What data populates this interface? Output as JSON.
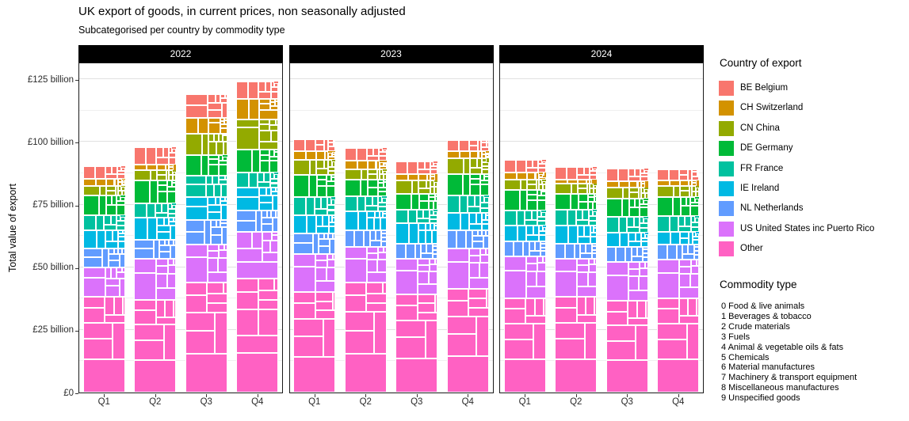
{
  "title": "UK export of goods, in current prices, non seasonally adjusted",
  "subtitle": "Subcategorised per country by commodity type",
  "chart_data": {
    "type": "bar",
    "variant": "stacked-mosaic",
    "title": "UK export of goods, in current prices, non seasonally adjusted",
    "subtitle": "Subcategorised per country by commodity type",
    "ylabel": "Total value of export",
    "xlabel": "",
    "unit": "£ billion",
    "ylim": [
      0,
      132
    ],
    "grid": "major-and-minor",
    "legend_position": "right",
    "facets": [
      "2022",
      "2023",
      "2024"
    ],
    "x_categories": [
      "Q1",
      "Q2",
      "Q3",
      "Q4"
    ],
    "y_ticks": [
      {
        "value": 0,
        "label": "£0"
      },
      {
        "value": 25,
        "label": "£25 billion"
      },
      {
        "value": 50,
        "label": "£50 billion"
      },
      {
        "value": 75,
        "label": "£75 billion"
      },
      {
        "value": 100,
        "label": "£100 billion"
      },
      {
        "value": 125,
        "label": "£125 billion"
      }
    ],
    "legend_title": "Country of export",
    "countries": [
      {
        "code": "BE",
        "label": "BE Belgium",
        "color": "#F8766D"
      },
      {
        "code": "CH",
        "label": "CH Switzerland",
        "color": "#D39200"
      },
      {
        "code": "CN",
        "label": "CN China",
        "color": "#93AA00"
      },
      {
        "code": "DE",
        "label": "DE Germany",
        "color": "#00BA38"
      },
      {
        "code": "FR",
        "label": "FR France",
        "color": "#00C19F"
      },
      {
        "code": "IE",
        "label": "IE Ireland",
        "color": "#00B9E3"
      },
      {
        "code": "NL",
        "label": "NL Netherlands",
        "color": "#619CFF"
      },
      {
        "code": "US",
        "label": "US United States inc Puerto Rico",
        "color": "#DB72FB"
      },
      {
        "code": "Other",
        "label": "Other",
        "color": "#FF61C3"
      }
    ],
    "commodity_title": "Commodity type",
    "commodities": [
      "0 Food & live animals",
      "1 Beverages & tobacco",
      "2 Crude materials",
      "3 Fuels",
      "4 Animal & vegetable oils & fats",
      "5 Chemicals",
      "6 Material manufactures",
      "7 Machinery & transport equipment",
      "8 Miscellaneous manufactures",
      "9 Unspecified goods"
    ],
    "commodity_shares_pct": {
      "BE": [
        7,
        2,
        3,
        8,
        1,
        28,
        11,
        25,
        10,
        5
      ],
      "CH": [
        4,
        2,
        2,
        2,
        1,
        30,
        8,
        20,
        25,
        6
      ],
      "CN": [
        5,
        4,
        6,
        3,
        1,
        15,
        10,
        40,
        12,
        4
      ],
      "DE": [
        6,
        2,
        3,
        5,
        1,
        18,
        12,
        38,
        11,
        4
      ],
      "FR": [
        9,
        6,
        3,
        6,
        1,
        20,
        11,
        30,
        10,
        4
      ],
      "IE": [
        10,
        3,
        2,
        6,
        1,
        32,
        9,
        22,
        11,
        4
      ],
      "NL": [
        9,
        3,
        4,
        14,
        2,
        22,
        10,
        24,
        9,
        3
      ],
      "US": [
        4,
        5,
        2,
        8,
        1,
        18,
        9,
        35,
        13,
        5
      ],
      "Other": [
        6,
        4,
        4,
        8,
        1,
        15,
        12,
        35,
        11,
        4
      ]
    },
    "values_billion_by_country": {
      "2022": {
        "Q1": [
          5.0,
          2.8,
          3.8,
          7.8,
          6.0,
          7.2,
          7.8,
          11.6,
          38.2
        ],
        "Q2": [
          7.0,
          2.3,
          4.0,
          9.2,
          5.8,
          8.6,
          7.7,
          16.4,
          37.0
        ],
        "Q3": [
          9.7,
          6.1,
          8.6,
          8.2,
          8.6,
          9.3,
          9.5,
          15.3,
          43.9
        ],
        "Q4": [
          6.9,
          8.2,
          12.3,
          9.0,
          6.1,
          9.2,
          8.5,
          18.5,
          45.5
        ]
      },
      "2023": {
        "Q1": [
          4.7,
          3.5,
          6.0,
          8.9,
          7.3,
          7.0,
          8.2,
          15.2,
          40.2
        ],
        "Q2": [
          5.1,
          3.5,
          3.9,
          6.9,
          5.8,
          7.7,
          6.5,
          14.2,
          44.0
        ],
        "Q3": [
          5.0,
          2.6,
          5.1,
          6.5,
          5.3,
          8.2,
          6.0,
          14.2,
          39.2
        ],
        "Q4": [
          4.7,
          2.8,
          6.3,
          8.5,
          7.0,
          7.0,
          7.0,
          16.1,
          41.5
        ]
      },
      "2024": {
        "Q1": [
          5.1,
          3.0,
          3.9,
          8.4,
          5.8,
          6.3,
          6.0,
          16.7,
          37.7
        ],
        "Q2": [
          5.1,
          1.6,
          4.0,
          6.5,
          6.3,
          7.0,
          6.0,
          15.3,
          38.2
        ],
        "Q3": [
          5.0,
          2.6,
          4.3,
          7.4,
          6.3,
          5.5,
          6.1,
          15.5,
          36.6
        ],
        "Q4": [
          4.4,
          2.3,
          4.2,
          7.7,
          6.3,
          5.0,
          6.1,
          15.3,
          37.7
        ]
      }
    }
  }
}
